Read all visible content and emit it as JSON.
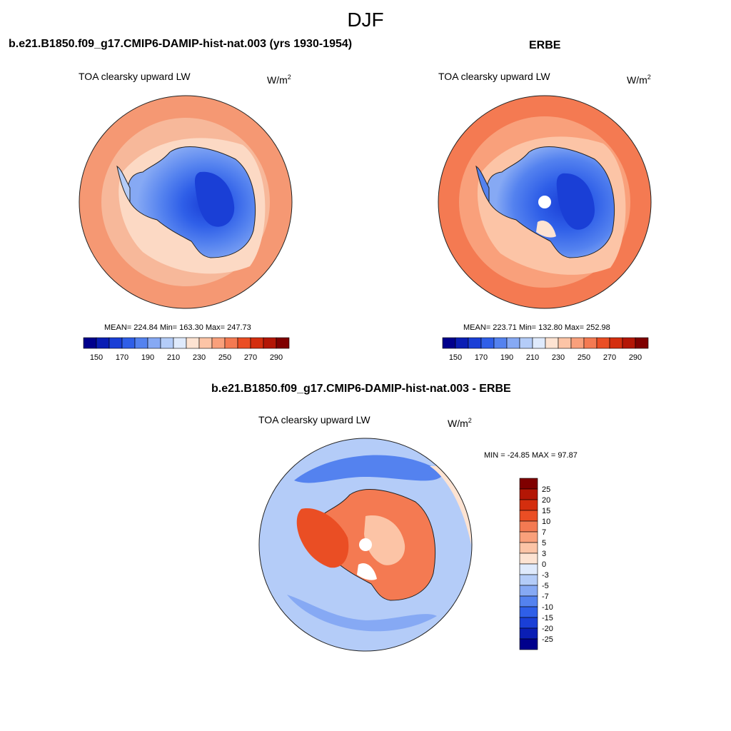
{
  "figure": {
    "title": "DJF"
  },
  "panels": [
    {
      "id": "model",
      "title": "b.e21.B1850.f09_g17.CMIP6-DAMIP-hist-nat.003 (yrs 1930-1954)",
      "variable": "TOA clearsky upward LW",
      "units_base": "W/m",
      "units_exp": "2",
      "stats": "MEAN= 224.84  Min= 163.30  Max= 247.73"
    },
    {
      "id": "obs",
      "title": "ERBE",
      "variable": "TOA clearsky upward LW",
      "units_base": "W/m",
      "units_exp": "2",
      "stats": "MEAN= 223.71  Min= 132.80  Max= 252.98"
    },
    {
      "id": "diff",
      "title": "b.e21.B1850.f09_g17.CMIP6-DAMIP-hist-nat.003 - ERBE",
      "variable": "TOA clearsky upward LW",
      "units_base": "W/m",
      "units_exp": "2",
      "stats": "MIN = -24.85 MAX =  97.87"
    }
  ],
  "colorbars": {
    "absolute": {
      "colors": [
        "#00008c",
        "#0a1eb4",
        "#1a3fd6",
        "#2f5fe8",
        "#5482ef",
        "#86a9f4",
        "#b4ccf8",
        "#dfeafc",
        "#fde3d2",
        "#fcc4a6",
        "#f9a07b",
        "#f47a52",
        "#ea4e24",
        "#d42e0e",
        "#b31605",
        "#7f0000"
      ],
      "tick_labels": [
        "150",
        "170",
        "190",
        "210",
        "230",
        "250",
        "270",
        "290"
      ]
    },
    "difference": {
      "colors": [
        "#7f0000",
        "#b31605",
        "#d42e0e",
        "#ea4e24",
        "#f47a52",
        "#f9a07b",
        "#fcc4a6",
        "#fde3d2",
        "#dfeafc",
        "#b4ccf8",
        "#86a9f4",
        "#5482ef",
        "#2f5fe8",
        "#1a3fd6",
        "#0a1eb4",
        "#00008c"
      ],
      "tick_labels": [
        "25",
        "20",
        "15",
        "10",
        "7",
        "5",
        "3",
        "0",
        "-3",
        "-5",
        "-7",
        "-10",
        "-15",
        "-20",
        "-25"
      ]
    }
  },
  "maps": {
    "projection": "south-polar-stereographic",
    "model_ocean_color": "#f7b89a",
    "model_ice_color": "#fcd9c4",
    "obs_ocean_color": "#f59873",
    "diff_ocean_color": "#b4ccf8",
    "diff_land_color": "#ea4e24"
  }
}
